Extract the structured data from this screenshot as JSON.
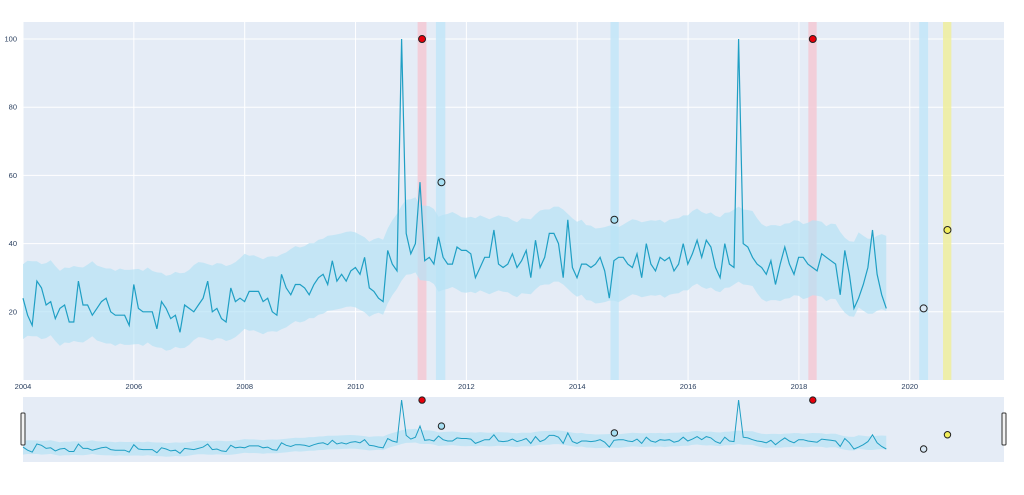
{
  "chart_data": {
    "type": "line",
    "title": "",
    "xlabel": "",
    "ylabel": "",
    "xlim": [
      2004.0,
      2021.7
    ],
    "ylim": [
      0,
      105
    ],
    "grid": true,
    "x_ticks": [
      "2004",
      "2006",
      "2008",
      "2010",
      "2012",
      "2014",
      "2016",
      "2018",
      "2020"
    ],
    "y_ticks": [
      "20",
      "40",
      "60",
      "80",
      "100"
    ],
    "colors": {
      "plot_bg": "#e5ecf6",
      "grid": "#ffffff",
      "line": "#1f9fc4",
      "band": "#b6e2f5",
      "high_marker": "#e8000b",
      "mid_marker": "#a8dff2",
      "low_marker": "#d8e8f5",
      "recent_marker": "#f2ee5b",
      "red_shade": "#f4c9d4",
      "blue_shade": "#c3e6f8",
      "yellow_shade": "#f0ee9c"
    },
    "shaded_regions": [
      {
        "x0": 2011.12,
        "x1": 2011.28,
        "color": "red"
      },
      {
        "x0": 2011.45,
        "x1": 2011.62,
        "color": "blue"
      },
      {
        "x0": 2014.6,
        "x1": 2014.75,
        "color": "blue"
      },
      {
        "x0": 2018.17,
        "x1": 2018.32,
        "color": "red"
      },
      {
        "x0": 2020.17,
        "x1": 2020.33,
        "color": "blue"
      },
      {
        "x0": 2020.6,
        "x1": 2020.75,
        "color": "yellow"
      }
    ],
    "highlighted_points": [
      {
        "x": 2011.2,
        "y": 100,
        "kind": "high"
      },
      {
        "x": 2011.55,
        "y": 58,
        "kind": "mid"
      },
      {
        "x": 2014.67,
        "y": 47,
        "kind": "mid"
      },
      {
        "x": 2018.25,
        "y": 100,
        "kind": "high"
      },
      {
        "x": 2020.25,
        "y": 21,
        "kind": "low"
      },
      {
        "x": 2020.68,
        "y": 44,
        "kind": "recent"
      }
    ],
    "series": [
      {
        "x_start": 2004.0,
        "step": 0.0833,
        "values": [
          24,
          19,
          16,
          29,
          27,
          22,
          23,
          18,
          21,
          22,
          17,
          17,
          29,
          22,
          22,
          19,
          21,
          23,
          24,
          20,
          19,
          19,
          19,
          16,
          28,
          21,
          20,
          20,
          20,
          15,
          23,
          21,
          18,
          19,
          14,
          22,
          21,
          20,
          22,
          24,
          29,
          20,
          21,
          18,
          17,
          27,
          23,
          24,
          23,
          26,
          26,
          26,
          23,
          24,
          20,
          19,
          31,
          27,
          25,
          28,
          28,
          27,
          25,
          28,
          30,
          31,
          28,
          35,
          29,
          31,
          29,
          32,
          33,
          31,
          36,
          27,
          26,
          24,
          23,
          38,
          34,
          32,
          100,
          43,
          37,
          40,
          58,
          35,
          36,
          34,
          42,
          36,
          34,
          34,
          39,
          38,
          38,
          37,
          30,
          33,
          36,
          36,
          44,
          34,
          33,
          34,
          37,
          33,
          35,
          38,
          30,
          41,
          33,
          36,
          43,
          43,
          40,
          30,
          47,
          33,
          30,
          34,
          34,
          33,
          34,
          36,
          32,
          24,
          35,
          36,
          36,
          34,
          33,
          37,
          30,
          40,
          34,
          32,
          36,
          35,
          36,
          32,
          34,
          40,
          34,
          37,
          41,
          36,
          41,
          39,
          33,
          30,
          40,
          34,
          33,
          100,
          40,
          39,
          36,
          34,
          33,
          31,
          35,
          28,
          34,
          39,
          34,
          31,
          36,
          36,
          34,
          33,
          32,
          37,
          36,
          35,
          34,
          25,
          38,
          31,
          21,
          24,
          28,
          33,
          44,
          31,
          25,
          21
        ]
      }
    ],
    "band": {
      "upper_offset": 12,
      "lower_offset": 10
    },
    "range_slider": {
      "visible": true,
      "handles": "both-ends"
    }
  }
}
